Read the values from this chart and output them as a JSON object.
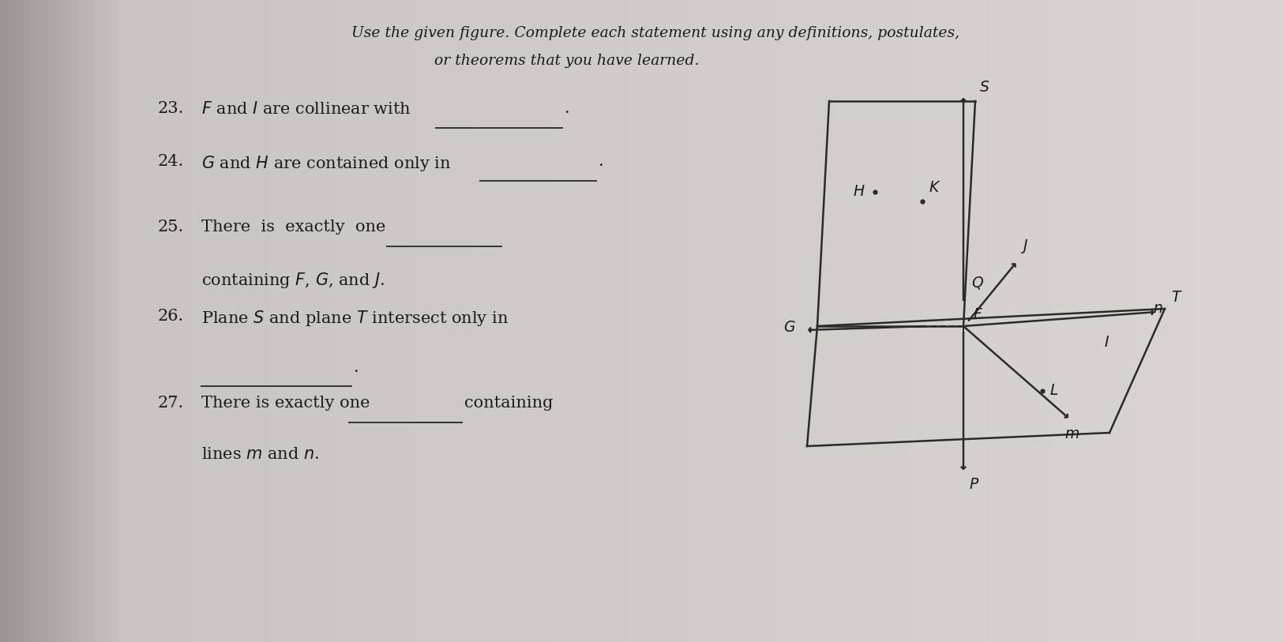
{
  "bg_color": "#c8c4bc",
  "page_color": "#d4d0c8",
  "title1": "Use the given figure. Complete each statement using any definitions, postulates,",
  "title2": "or theorems that you have learned.",
  "q23_main": "$F$ and $I$ are collinear with",
  "q24_main": "$G$ and $H$ are contained only in",
  "q25_line1": "There  is  exactly  one",
  "q25_line2": "containing $F$, $G$, and $J$.",
  "q26_line1": "Plane $S$ and plane $T$ intersect only in",
  "q27_line1": "There is exactly one",
  "q27_mid": "containing",
  "q27_line2": "lines $m$ and $n$.",
  "font_size_title": 13.5,
  "font_size_q": 15,
  "ox": 12.2,
  "oy": 4.0
}
